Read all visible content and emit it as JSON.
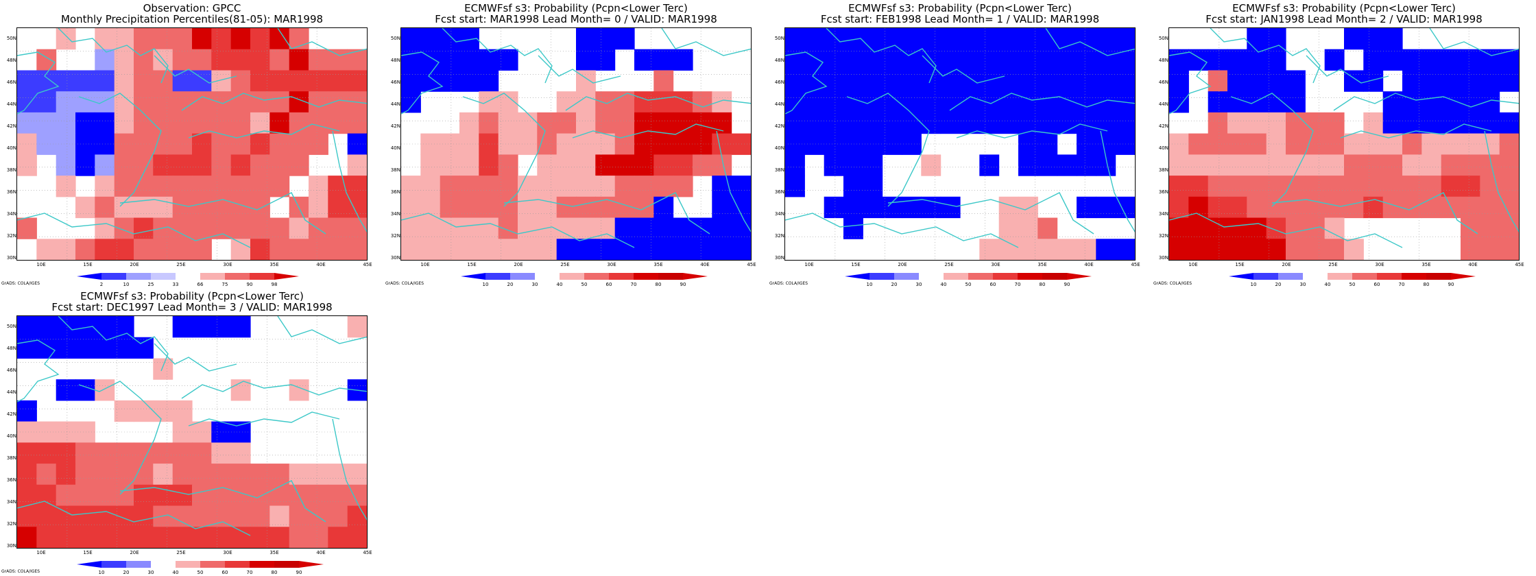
{
  "panels": [
    {
      "title_line1": "Observation: GPCC",
      "title_line2": "Monthly Precipitation Percentiles(81-05): MAR1998",
      "colorbar": [
        "2",
        "10",
        "25",
        "33",
        "66",
        "75",
        "90",
        "98"
      ],
      "palette": "obs"
    },
    {
      "title_line1": "ECMWFsf s3: Probability (Pcpn<Lower Terc)",
      "title_line2": "Fcst start: MAR1998   Lead Month= 0 / VALID: MAR1998",
      "colorbar": [
        "10",
        "20",
        "30",
        "40",
        "50",
        "60",
        "70",
        "80",
        "90"
      ],
      "palette": "prob"
    },
    {
      "title_line1": "ECMWFsf s3: Probability (Pcpn<Lower Terc)",
      "title_line2": "Fcst start: FEB1998   Lead Month= 1 / VALID: MAR1998",
      "colorbar": [
        "10",
        "20",
        "30",
        "40",
        "50",
        "60",
        "70",
        "80",
        "90"
      ],
      "palette": "prob"
    },
    {
      "title_line1": "ECMWFsf s3: Probability (Pcpn<Lower Terc)",
      "title_line2": "Fcst start: JAN1998   Lead Month= 2 / VALID: MAR1998",
      "colorbar": [
        "10",
        "20",
        "30",
        "40",
        "50",
        "60",
        "70",
        "80",
        "90"
      ],
      "palette": "prob"
    },
    {
      "title_line1": "ECMWFsf s3: Probability (Pcpn<Lower Terc)",
      "title_line2": "Fcst start: DEC1997   Lead Month= 3 / VALID: MAR1998",
      "colorbar": [
        "10",
        "20",
        "30",
        "40",
        "50",
        "60",
        "70",
        "80",
        "90"
      ],
      "palette": "prob"
    }
  ],
  "y_labels": [
    "50N",
    "48N",
    "46N",
    "44N",
    "42N",
    "40N",
    "38N",
    "36N",
    "34N",
    "32N",
    "30N"
  ],
  "x_labels": [
    "10E",
    "15E",
    "20E",
    "25E",
    "30E",
    "35E",
    "40E",
    "45E"
  ],
  "grads_label": "GrADS: COLA/IGES",
  "colors": {
    "coast": "#3cc8c8",
    "blues": [
      "#0000ff",
      "#3c3cff",
      "#9ea0ff"
    ],
    "reds": [
      "#f9b0b0",
      "#ef6a6a",
      "#e83838",
      "#d60000"
    ],
    "white": "#ffffff"
  }
}
